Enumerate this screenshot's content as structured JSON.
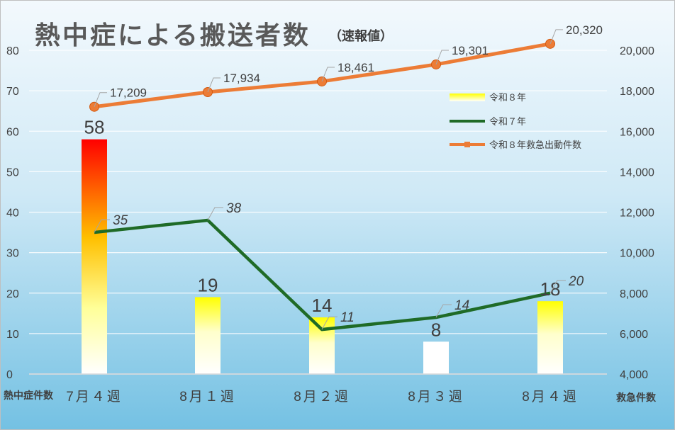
{
  "title": "熱中症による搬送者数",
  "subtitle": "（速報値）",
  "left_axis_label": "熱中症件数",
  "right_axis_label": "救急件数",
  "colors": {
    "background_top": "#f3f9fd",
    "background_bottom": "#74c1e3",
    "line_r7": "#1f6b27",
    "line_dispatch": "#ec7c36",
    "bar_hot_top": "#ff0000",
    "bar_hot_mid": "#ffc000",
    "bar_yellow": "#ffff00",
    "bar_white": "#ffffff"
  },
  "chart_data": {
    "type": "bar",
    "categories": [
      "7月４週",
      "8月１週",
      "8月２週",
      "8月３週",
      "8月４週"
    ],
    "series": [
      {
        "name": "令和８年",
        "type": "bar",
        "axis": "left",
        "values": [
          58,
          19,
          14,
          8,
          18
        ],
        "labels": [
          "58",
          "19",
          "14",
          "8",
          "18"
        ]
      },
      {
        "name": "令和７年",
        "type": "line",
        "axis": "left",
        "values": [
          35,
          38,
          11,
          14,
          20
        ],
        "labels": [
          "35",
          "38",
          "11",
          "14",
          "20"
        ]
      },
      {
        "name": "令和８年救急出動件数",
        "type": "line",
        "axis": "right",
        "values": [
          17209,
          17934,
          18461,
          19301,
          20320
        ],
        "labels": [
          "17,209",
          "17,934",
          "18,461",
          "19,301",
          "20,320"
        ]
      }
    ],
    "left_axis": {
      "ylim": [
        0,
        80
      ],
      "ticks": [
        "0",
        "10",
        "20",
        "30",
        "40",
        "50",
        "60",
        "70",
        "80"
      ]
    },
    "right_axis": {
      "ylim": [
        4000,
        20000
      ],
      "ticks": [
        "4,000",
        "6,000",
        "8,000",
        "10,000",
        "12,000",
        "14,000",
        "16,000",
        "18,000",
        "20,000"
      ]
    },
    "grid": true,
    "legend": "right"
  }
}
